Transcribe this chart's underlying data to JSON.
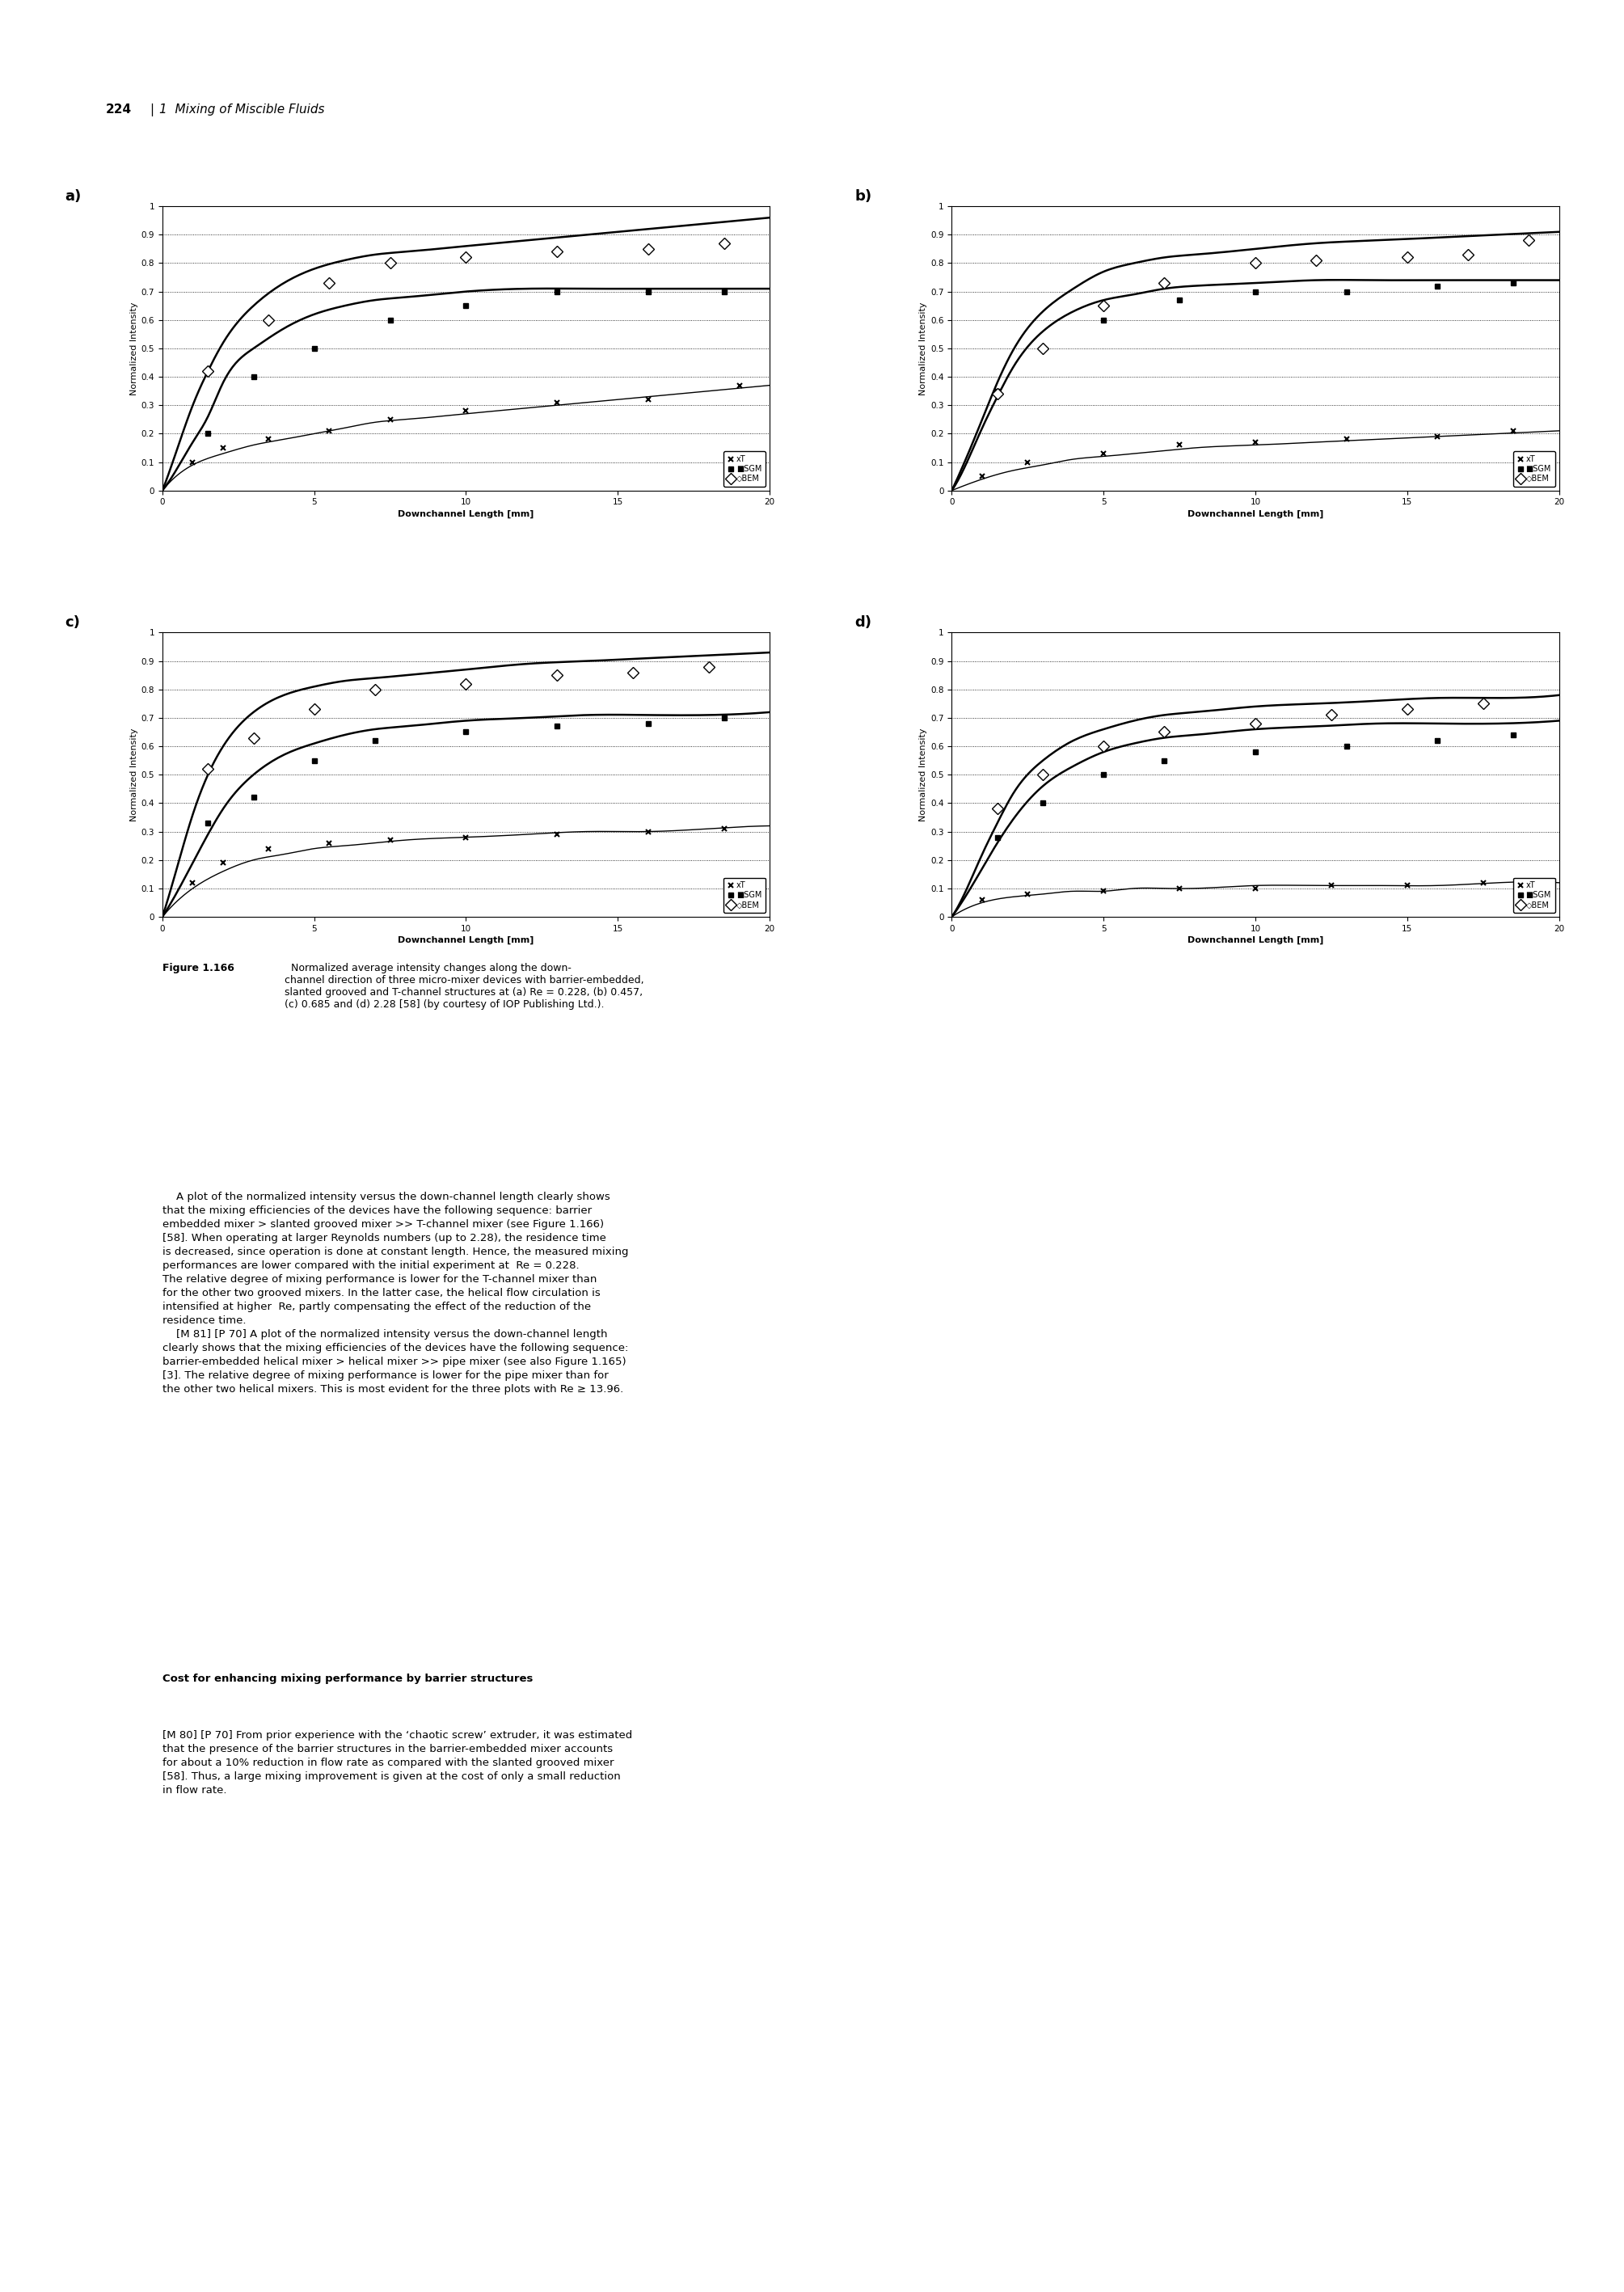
{
  "subplots": [
    {
      "label": "a)",
      "T": {
        "x": [
          1.0,
          2.0,
          3.5,
          5.5,
          7.5,
          10.0,
          13.0,
          16.0,
          19.0
        ],
        "y": [
          0.1,
          0.15,
          0.18,
          0.21,
          0.25,
          0.28,
          0.31,
          0.32,
          0.37
        ]
      },
      "SGM": {
        "x": [
          1.5,
          3.0,
          5.0,
          7.5,
          10.0,
          13.0,
          16.0,
          18.5
        ],
        "y": [
          0.2,
          0.4,
          0.5,
          0.6,
          0.65,
          0.7,
          0.7,
          0.7
        ]
      },
      "BEM": {
        "x": [
          1.5,
          3.5,
          5.5,
          7.5,
          10.0,
          13.0,
          16.0,
          18.5
        ],
        "y": [
          0.42,
          0.6,
          0.73,
          0.8,
          0.82,
          0.84,
          0.85,
          0.87
        ]
      },
      "T_curve_x": [
        0,
        1,
        2,
        3,
        4,
        5,
        6,
        7,
        8,
        10,
        12,
        14,
        16,
        18,
        20
      ],
      "T_curve_y": [
        0.0,
        0.09,
        0.13,
        0.16,
        0.18,
        0.2,
        0.22,
        0.24,
        0.25,
        0.27,
        0.29,
        0.31,
        0.33,
        0.35,
        0.37
      ],
      "SGM_curve_x": [
        0,
        0.5,
        1,
        1.5,
        2,
        3,
        4,
        5,
        6,
        7,
        8,
        10,
        12,
        14,
        16,
        18,
        20
      ],
      "SGM_curve_y": [
        0.0,
        0.08,
        0.17,
        0.26,
        0.38,
        0.5,
        0.57,
        0.62,
        0.65,
        0.67,
        0.68,
        0.7,
        0.71,
        0.71,
        0.71,
        0.71,
        0.71
      ],
      "BEM_curve_x": [
        0,
        0.5,
        1,
        1.5,
        2,
        3,
        4,
        5,
        6,
        7,
        8,
        10,
        12,
        14,
        16,
        18,
        20
      ],
      "BEM_curve_y": [
        0.0,
        0.15,
        0.3,
        0.42,
        0.52,
        0.65,
        0.73,
        0.78,
        0.81,
        0.83,
        0.84,
        0.86,
        0.88,
        0.9,
        0.92,
        0.94,
        0.96
      ]
    },
    {
      "label": "b)",
      "T": {
        "x": [
          1.0,
          2.5,
          5.0,
          7.5,
          10.0,
          13.0,
          16.0,
          18.5
        ],
        "y": [
          0.05,
          0.1,
          0.13,
          0.16,
          0.17,
          0.18,
          0.19,
          0.21
        ]
      },
      "SGM": {
        "x": [
          1.5,
          3.0,
          5.0,
          7.5,
          10.0,
          13.0,
          16.0,
          18.5
        ],
        "y": [
          0.35,
          0.5,
          0.6,
          0.67,
          0.7,
          0.7,
          0.72,
          0.73
        ]
      },
      "BEM": {
        "x": [
          1.5,
          3.0,
          5.0,
          7.0,
          10.0,
          12.0,
          15.0,
          17.0,
          19.0
        ],
        "y": [
          0.34,
          0.5,
          0.65,
          0.73,
          0.8,
          0.81,
          0.82,
          0.83,
          0.88
        ]
      },
      "T_curve_x": [
        0,
        1,
        2,
        3,
        4,
        5,
        6,
        7,
        8,
        10,
        12,
        14,
        16,
        18,
        20
      ],
      "T_curve_y": [
        0.0,
        0.04,
        0.07,
        0.09,
        0.11,
        0.12,
        0.13,
        0.14,
        0.15,
        0.16,
        0.17,
        0.18,
        0.19,
        0.2,
        0.21
      ],
      "SGM_curve_x": [
        0,
        0.5,
        1,
        1.5,
        2,
        3,
        4,
        5,
        6,
        7,
        8,
        10,
        12,
        14,
        16,
        18,
        20
      ],
      "SGM_curve_y": [
        0.0,
        0.1,
        0.22,
        0.33,
        0.43,
        0.56,
        0.63,
        0.67,
        0.69,
        0.71,
        0.72,
        0.73,
        0.74,
        0.74,
        0.74,
        0.74,
        0.74
      ],
      "BEM_curve_x": [
        0,
        0.5,
        1,
        1.5,
        2,
        3,
        4,
        5,
        6,
        7,
        8,
        10,
        12,
        14,
        16,
        18,
        20
      ],
      "BEM_curve_y": [
        0.0,
        0.12,
        0.25,
        0.38,
        0.49,
        0.63,
        0.71,
        0.77,
        0.8,
        0.82,
        0.83,
        0.85,
        0.87,
        0.88,
        0.89,
        0.9,
        0.91
      ]
    },
    {
      "label": "c)",
      "T": {
        "x": [
          1.0,
          2.0,
          3.5,
          5.5,
          7.5,
          10.0,
          13.0,
          16.0,
          18.5
        ],
        "y": [
          0.12,
          0.19,
          0.24,
          0.26,
          0.27,
          0.28,
          0.29,
          0.3,
          0.31
        ]
      },
      "SGM": {
        "x": [
          1.5,
          3.0,
          5.0,
          7.0,
          10.0,
          13.0,
          16.0,
          18.5
        ],
        "y": [
          0.33,
          0.42,
          0.55,
          0.62,
          0.65,
          0.67,
          0.68,
          0.7
        ]
      },
      "BEM": {
        "x": [
          1.5,
          3.0,
          5.0,
          7.0,
          10.0,
          13.0,
          15.5,
          18.0
        ],
        "y": [
          0.52,
          0.63,
          0.73,
          0.8,
          0.82,
          0.85,
          0.86,
          0.88
        ]
      },
      "T_curve_x": [
        0,
        1,
        2,
        3,
        4,
        5,
        6,
        7,
        8,
        10,
        12,
        14,
        16,
        18,
        20
      ],
      "T_curve_y": [
        0.0,
        0.1,
        0.16,
        0.2,
        0.22,
        0.24,
        0.25,
        0.26,
        0.27,
        0.28,
        0.29,
        0.3,
        0.3,
        0.31,
        0.32
      ],
      "SGM_curve_x": [
        0,
        0.5,
        1,
        1.5,
        2,
        3,
        4,
        5,
        6,
        7,
        8,
        10,
        12,
        14,
        16,
        18,
        20
      ],
      "SGM_curve_y": [
        0.0,
        0.09,
        0.19,
        0.29,
        0.38,
        0.5,
        0.57,
        0.61,
        0.64,
        0.66,
        0.67,
        0.69,
        0.7,
        0.71,
        0.71,
        0.71,
        0.72
      ],
      "BEM_curve_x": [
        0,
        0.5,
        1,
        1.5,
        2,
        3,
        4,
        5,
        6,
        7,
        8,
        10,
        12,
        14,
        16,
        18,
        20
      ],
      "BEM_curve_y": [
        0.0,
        0.18,
        0.36,
        0.5,
        0.6,
        0.72,
        0.78,
        0.81,
        0.83,
        0.84,
        0.85,
        0.87,
        0.89,
        0.9,
        0.91,
        0.92,
        0.93
      ]
    },
    {
      "label": "d)",
      "T": {
        "x": [
          1.0,
          2.5,
          5.0,
          7.5,
          10.0,
          12.5,
          15.0,
          17.5
        ],
        "y": [
          0.06,
          0.08,
          0.09,
          0.1,
          0.1,
          0.11,
          0.11,
          0.12
        ]
      },
      "SGM": {
        "x": [
          1.5,
          3.0,
          5.0,
          7.0,
          10.0,
          13.0,
          16.0,
          18.5
        ],
        "y": [
          0.28,
          0.4,
          0.5,
          0.55,
          0.58,
          0.6,
          0.62,
          0.64
        ]
      },
      "BEM": {
        "x": [
          1.5,
          3.0,
          5.0,
          7.0,
          10.0,
          12.5,
          15.0,
          17.5
        ],
        "y": [
          0.38,
          0.5,
          0.6,
          0.65,
          0.68,
          0.71,
          0.73,
          0.75
        ]
      },
      "T_curve_x": [
        0,
        1,
        2,
        3,
        4,
        5,
        6,
        7,
        8,
        10,
        12,
        14,
        16,
        18,
        20
      ],
      "T_curve_y": [
        0.0,
        0.05,
        0.07,
        0.08,
        0.09,
        0.09,
        0.1,
        0.1,
        0.1,
        0.11,
        0.11,
        0.11,
        0.11,
        0.12,
        0.12
      ],
      "SGM_curve_x": [
        0,
        0.5,
        1,
        1.5,
        2,
        3,
        4,
        5,
        6,
        7,
        8,
        10,
        12,
        14,
        16,
        18,
        20
      ],
      "SGM_curve_y": [
        0.0,
        0.08,
        0.17,
        0.26,
        0.34,
        0.46,
        0.53,
        0.58,
        0.61,
        0.63,
        0.64,
        0.66,
        0.67,
        0.68,
        0.68,
        0.68,
        0.69
      ],
      "BEM_curve_x": [
        0,
        0.5,
        1,
        1.5,
        2,
        3,
        4,
        5,
        6,
        7,
        8,
        10,
        12,
        14,
        16,
        18,
        20
      ],
      "BEM_curve_y": [
        0.0,
        0.1,
        0.22,
        0.33,
        0.43,
        0.55,
        0.62,
        0.66,
        0.69,
        0.71,
        0.72,
        0.74,
        0.75,
        0.76,
        0.77,
        0.77,
        0.78
      ]
    }
  ],
  "xlabel": "Downchannel Length [mm]",
  "ylabel": "Normalized Intensity",
  "xlim": [
    0,
    20
  ],
  "ylim": [
    0,
    1
  ],
  "yticks": [
    0,
    0.1,
    0.2,
    0.3,
    0.4,
    0.5,
    0.6,
    0.7,
    0.8,
    0.9,
    1.0
  ],
  "ytick_labels": [
    "0",
    "0.1",
    "0.2",
    "0.3",
    "0.4",
    "0.5",
    "0.6",
    "0.7",
    "0.8",
    "0.9",
    "1"
  ],
  "xticks": [
    0,
    5,
    10,
    15,
    20
  ],
  "header_num": "224",
  "header_text": "1  Mixing of Miscible Fluids",
  "caption_bold": "Figure 1.166",
  "caption_normal": "  Normalized average intensity changes along the down-channel direction of three micro-mixer devices with barrier-embedded, slanted grooved and T-channel structures at (a) ",
  "caption_italic_re": "Re",
  "caption_re_val": " = 0.228, (b) 0.457,\n(c) 0.685 and (d) 2.28 [58] (by courtesy of IOP Publishing Ltd.).",
  "body_text": "    A plot of the normalized intensity versus the down-channel length clearly shows that the mixing efficiencies of the devices have the following sequence: barrier embedded mixer > slanted grooved mixer >> T-channel mixer (see Figure 1.166) [58]. When operating at larger Reynolds numbers (up to 2.28), the residence time is decreased, since operation is done at constant length. Hence, the measured mixing performances are lower compared with the initial experiment at Re = 0.228. The relative degree of mixing performance is lower for the T-channel mixer than for the other two grooved mixers. In the latter case, the helical flow circulation is intensified at higher Re, partly compensating the effect of the reduction of the residence time.\n    [M 81] [P 70] A plot of the normalized intensity versus the down-channel length clearly shows that the mixing efficiencies of the devices have the following sequence: barrier-embedded helical mixer > helical mixer >> pipe mixer (see also Figure 1.165) [3]. The relative degree of mixing performance is lower for the pipe mixer than for the other two helical mixers. This is most evident for the three plots with Re ≥ 13.96.\n\nCost for enhancing mixing performance by barrier structures\n[M 80] [P 70] From prior experience with the ‘chaotic screw’ extruder, it was estimated that the presence of the barrier structures in the barrier-embedded mixer accounts for about a 10% reduction in flow rate as compared with the slanted grooved mixer [58]. Thus, a large mixing improvement is given at the cost of only a small reduction in flow rate."
}
